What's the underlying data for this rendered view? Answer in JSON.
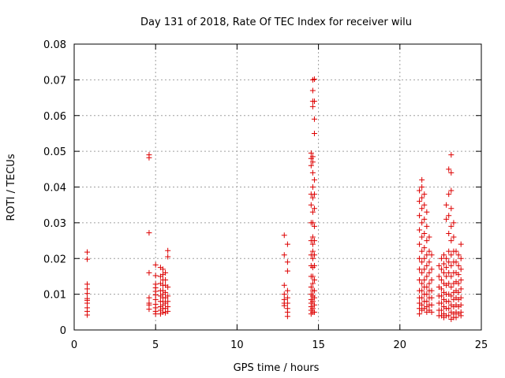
{
  "chart_data": {
    "type": "scatter",
    "title": "Day 131 of 2018, Rate Of TEC Index for receiver wilu",
    "xlabel": "GPS time / hours",
    "ylabel": "ROTI / TECUs",
    "xlim": [
      0,
      25
    ],
    "ylim": [
      0,
      0.08
    ],
    "xticks": [
      0,
      5,
      10,
      15,
      20,
      25
    ],
    "xtick_labels": [
      "0",
      "5",
      "10",
      "15",
      "20",
      "25"
    ],
    "yticks": [
      0,
      0.01,
      0.02,
      0.03,
      0.04,
      0.05,
      0.06,
      0.07,
      0.08
    ],
    "ytick_labels": [
      "0",
      "0.01",
      "0.02",
      "0.03",
      "0.04",
      "0.05",
      "0.06",
      "0.07",
      "0.08"
    ],
    "grid": true,
    "marker": "+",
    "marker_color": "#dd0000",
    "series": [
      {
        "name": "ROTI",
        "points": [
          [
            0.8,
            0.0218
          ],
          [
            0.8,
            0.0198
          ],
          [
            0.8,
            0.0128
          ],
          [
            0.8,
            0.0115
          ],
          [
            0.8,
            0.0102
          ],
          [
            0.8,
            0.0088
          ],
          [
            0.8,
            0.0083
          ],
          [
            0.8,
            0.0075
          ],
          [
            0.8,
            0.0062
          ],
          [
            0.8,
            0.0052
          ],
          [
            0.8,
            0.0042
          ],
          [
            4.6,
            0.049
          ],
          [
            4.6,
            0.0482
          ],
          [
            4.6,
            0.0272
          ],
          [
            4.6,
            0.016
          ],
          [
            4.6,
            0.009
          ],
          [
            4.6,
            0.0075
          ],
          [
            4.6,
            0.007
          ],
          [
            4.6,
            0.0058
          ],
          [
            5.0,
            0.0182
          ],
          [
            5.0,
            0.0152
          ],
          [
            5.0,
            0.0128
          ],
          [
            5.0,
            0.0118
          ],
          [
            5.0,
            0.0108
          ],
          [
            5.0,
            0.0098
          ],
          [
            5.0,
            0.0085
          ],
          [
            5.0,
            0.0072
          ],
          [
            5.0,
            0.0062
          ],
          [
            5.0,
            0.0052
          ],
          [
            5.0,
            0.0045
          ],
          [
            5.3,
            0.0175
          ],
          [
            5.3,
            0.015
          ],
          [
            5.3,
            0.013
          ],
          [
            5.3,
            0.011
          ],
          [
            5.3,
            0.0095
          ],
          [
            5.3,
            0.008
          ],
          [
            5.3,
            0.0065
          ],
          [
            5.3,
            0.0055
          ],
          [
            5.3,
            0.0045
          ],
          [
            5.45,
            0.017
          ],
          [
            5.45,
            0.0155
          ],
          [
            5.45,
            0.014
          ],
          [
            5.45,
            0.0125
          ],
          [
            5.45,
            0.011
          ],
          [
            5.45,
            0.01
          ],
          [
            5.45,
            0.009
          ],
          [
            5.45,
            0.008
          ],
          [
            5.45,
            0.007
          ],
          [
            5.45,
            0.006
          ],
          [
            5.45,
            0.005
          ],
          [
            5.6,
            0.016
          ],
          [
            5.6,
            0.014
          ],
          [
            5.6,
            0.0125
          ],
          [
            5.6,
            0.0105
          ],
          [
            5.6,
            0.009
          ],
          [
            5.6,
            0.0075
          ],
          [
            5.6,
            0.006
          ],
          [
            5.6,
            0.0048
          ],
          [
            5.75,
            0.0222
          ],
          [
            5.75,
            0.0205
          ],
          [
            5.75,
            0.012
          ],
          [
            5.75,
            0.0095
          ],
          [
            5.75,
            0.008
          ],
          [
            5.75,
            0.0065
          ],
          [
            5.75,
            0.0052
          ],
          [
            12.9,
            0.0265
          ],
          [
            12.9,
            0.021
          ],
          [
            12.9,
            0.0125
          ],
          [
            12.9,
            0.01
          ],
          [
            12.9,
            0.0085
          ],
          [
            12.9,
            0.0075
          ],
          [
            12.9,
            0.0068
          ],
          [
            13.1,
            0.024
          ],
          [
            13.1,
            0.019
          ],
          [
            13.1,
            0.0165
          ],
          [
            13.1,
            0.011
          ],
          [
            13.1,
            0.009
          ],
          [
            13.1,
            0.0075
          ],
          [
            13.1,
            0.006
          ],
          [
            13.1,
            0.005
          ],
          [
            13.1,
            0.0038
          ],
          [
            14.55,
            0.0495
          ],
          [
            14.55,
            0.048
          ],
          [
            14.55,
            0.046
          ],
          [
            14.55,
            0.038
          ],
          [
            14.55,
            0.035
          ],
          [
            14.55,
            0.03
          ],
          [
            14.55,
            0.025
          ],
          [
            14.55,
            0.021
          ],
          [
            14.55,
            0.018
          ],
          [
            14.55,
            0.015
          ],
          [
            14.55,
            0.012
          ],
          [
            14.55,
            0.01
          ],
          [
            14.55,
            0.0085
          ],
          [
            14.55,
            0.0075
          ],
          [
            14.55,
            0.0065
          ],
          [
            14.55,
            0.0055
          ],
          [
            14.55,
            0.0045
          ],
          [
            14.65,
            0.07
          ],
          [
            14.65,
            0.067
          ],
          [
            14.65,
            0.064
          ],
          [
            14.65,
            0.0625
          ],
          [
            14.65,
            0.0485
          ],
          [
            14.65,
            0.047
          ],
          [
            14.65,
            0.044
          ],
          [
            14.65,
            0.04
          ],
          [
            14.65,
            0.037
          ],
          [
            14.65,
            0.033
          ],
          [
            14.65,
            0.03
          ],
          [
            14.65,
            0.026
          ],
          [
            14.65,
            0.024
          ],
          [
            14.65,
            0.022
          ],
          [
            14.65,
            0.02
          ],
          [
            14.65,
            0.0175
          ],
          [
            14.65,
            0.015
          ],
          [
            14.65,
            0.013
          ],
          [
            14.65,
            0.011
          ],
          [
            14.65,
            0.0095
          ],
          [
            14.65,
            0.008
          ],
          [
            14.65,
            0.006
          ],
          [
            14.65,
            0.005
          ],
          [
            14.75,
            0.0702
          ],
          [
            14.75,
            0.064
          ],
          [
            14.75,
            0.059
          ],
          [
            14.75,
            0.055
          ],
          [
            14.75,
            0.042
          ],
          [
            14.75,
            0.038
          ],
          [
            14.75,
            0.034
          ],
          [
            14.75,
            0.029
          ],
          [
            14.75,
            0.025
          ],
          [
            14.75,
            0.021
          ],
          [
            14.75,
            0.018
          ],
          [
            14.75,
            0.014
          ],
          [
            14.75,
            0.011
          ],
          [
            14.75,
            0.009
          ],
          [
            14.75,
            0.007
          ],
          [
            14.75,
            0.005
          ],
          [
            21.2,
            0.039
          ],
          [
            21.2,
            0.036
          ],
          [
            21.2,
            0.032
          ],
          [
            21.2,
            0.028
          ],
          [
            21.2,
            0.024
          ],
          [
            21.2,
            0.02
          ],
          [
            21.2,
            0.017
          ],
          [
            21.2,
            0.014
          ],
          [
            21.2,
            0.011
          ],
          [
            21.2,
            0.009
          ],
          [
            21.2,
            0.0075
          ],
          [
            21.2,
            0.006
          ],
          [
            21.2,
            0.0045
          ],
          [
            21.35,
            0.042
          ],
          [
            21.35,
            0.04
          ],
          [
            21.35,
            0.037
          ],
          [
            21.35,
            0.034
          ],
          [
            21.35,
            0.03
          ],
          [
            21.35,
            0.026
          ],
          [
            21.35,
            0.022
          ],
          [
            21.35,
            0.019
          ],
          [
            21.35,
            0.016
          ],
          [
            21.35,
            0.013
          ],
          [
            21.35,
            0.011
          ],
          [
            21.35,
            0.009
          ],
          [
            21.35,
            0.007
          ],
          [
            21.35,
            0.0055
          ],
          [
            21.5,
            0.038
          ],
          [
            21.5,
            0.035
          ],
          [
            21.5,
            0.031
          ],
          [
            21.5,
            0.027
          ],
          [
            21.5,
            0.023
          ],
          [
            21.5,
            0.02
          ],
          [
            21.5,
            0.017
          ],
          [
            21.5,
            0.014
          ],
          [
            21.5,
            0.012
          ],
          [
            21.5,
            0.01
          ],
          [
            21.5,
            0.008
          ],
          [
            21.5,
            0.006
          ],
          [
            21.65,
            0.033
          ],
          [
            21.65,
            0.029
          ],
          [
            21.65,
            0.025
          ],
          [
            21.65,
            0.021
          ],
          [
            21.65,
            0.018
          ],
          [
            21.65,
            0.015
          ],
          [
            21.65,
            0.012
          ],
          [
            21.65,
            0.01
          ],
          [
            21.65,
            0.008
          ],
          [
            21.65,
            0.0065
          ],
          [
            21.65,
            0.005
          ],
          [
            21.8,
            0.026
          ],
          [
            21.8,
            0.022
          ],
          [
            21.8,
            0.019
          ],
          [
            21.8,
            0.016
          ],
          [
            21.8,
            0.013
          ],
          [
            21.8,
            0.011
          ],
          [
            21.8,
            0.009
          ],
          [
            21.8,
            0.007
          ],
          [
            21.8,
            0.0055
          ],
          [
            21.95,
            0.021
          ],
          [
            21.95,
            0.017
          ],
          [
            21.95,
            0.014
          ],
          [
            21.95,
            0.011
          ],
          [
            21.95,
            0.009
          ],
          [
            21.95,
            0.007
          ],
          [
            21.95,
            0.005
          ],
          [
            22.4,
            0.018
          ],
          [
            22.4,
            0.015
          ],
          [
            22.4,
            0.012
          ],
          [
            22.4,
            0.0095
          ],
          [
            22.4,
            0.0075
          ],
          [
            22.4,
            0.0055
          ],
          [
            22.4,
            0.004
          ],
          [
            22.55,
            0.02
          ],
          [
            22.55,
            0.017
          ],
          [
            22.55,
            0.014
          ],
          [
            22.55,
            0.0115
          ],
          [
            22.55,
            0.0095
          ],
          [
            22.55,
            0.0075
          ],
          [
            22.55,
            0.0055
          ],
          [
            22.55,
            0.004
          ],
          [
            22.7,
            0.021
          ],
          [
            22.7,
            0.0185
          ],
          [
            22.7,
            0.016
          ],
          [
            22.7,
            0.013
          ],
          [
            22.7,
            0.0105
          ],
          [
            22.7,
            0.0085
          ],
          [
            22.7,
            0.0065
          ],
          [
            22.7,
            0.0045
          ],
          [
            22.7,
            0.0035
          ],
          [
            22.85,
            0.035
          ],
          [
            22.85,
            0.031
          ],
          [
            22.85,
            0.02
          ],
          [
            22.85,
            0.0175
          ],
          [
            22.85,
            0.015
          ],
          [
            22.85,
            0.0125
          ],
          [
            22.85,
            0.01
          ],
          [
            22.85,
            0.008
          ],
          [
            22.85,
            0.006
          ],
          [
            22.85,
            0.004
          ],
          [
            23.0,
            0.045
          ],
          [
            23.0,
            0.038
          ],
          [
            23.0,
            0.032
          ],
          [
            23.0,
            0.027
          ],
          [
            23.0,
            0.022
          ],
          [
            23.0,
            0.019
          ],
          [
            23.0,
            0.016
          ],
          [
            23.0,
            0.013
          ],
          [
            23.0,
            0.01
          ],
          [
            23.0,
            0.008
          ],
          [
            23.0,
            0.006
          ],
          [
            23.0,
            0.004
          ],
          [
            23.15,
            0.049
          ],
          [
            23.15,
            0.044
          ],
          [
            23.15,
            0.039
          ],
          [
            23.15,
            0.034
          ],
          [
            23.15,
            0.029
          ],
          [
            23.15,
            0.025
          ],
          [
            23.15,
            0.021
          ],
          [
            23.15,
            0.018
          ],
          [
            23.15,
            0.015
          ],
          [
            23.15,
            0.012
          ],
          [
            23.15,
            0.0095
          ],
          [
            23.15,
            0.007
          ],
          [
            23.15,
            0.005
          ],
          [
            23.15,
            0.003
          ],
          [
            23.3,
            0.03
          ],
          [
            23.3,
            0.026
          ],
          [
            23.3,
            0.022
          ],
          [
            23.3,
            0.019
          ],
          [
            23.3,
            0.016
          ],
          [
            23.3,
            0.013
          ],
          [
            23.3,
            0.0105
          ],
          [
            23.3,
            0.0085
          ],
          [
            23.3,
            0.0065
          ],
          [
            23.3,
            0.0045
          ],
          [
            23.3,
            0.0035
          ],
          [
            23.45,
            0.022
          ],
          [
            23.45,
            0.019
          ],
          [
            23.45,
            0.016
          ],
          [
            23.45,
            0.0135
          ],
          [
            23.45,
            0.011
          ],
          [
            23.45,
            0.009
          ],
          [
            23.45,
            0.007
          ],
          [
            23.45,
            0.005
          ],
          [
            23.45,
            0.0035
          ],
          [
            23.6,
            0.021
          ],
          [
            23.6,
            0.018
          ],
          [
            23.6,
            0.0155
          ],
          [
            23.6,
            0.013
          ],
          [
            23.6,
            0.0105
          ],
          [
            23.6,
            0.0085
          ],
          [
            23.6,
            0.0065
          ],
          [
            23.6,
            0.0045
          ],
          [
            23.75,
            0.024
          ],
          [
            23.75,
            0.02
          ],
          [
            23.75,
            0.017
          ],
          [
            23.75,
            0.014
          ],
          [
            23.75,
            0.0115
          ],
          [
            23.75,
            0.009
          ],
          [
            23.75,
            0.007
          ],
          [
            23.75,
            0.005
          ],
          [
            23.75,
            0.004
          ]
        ]
      }
    ]
  }
}
